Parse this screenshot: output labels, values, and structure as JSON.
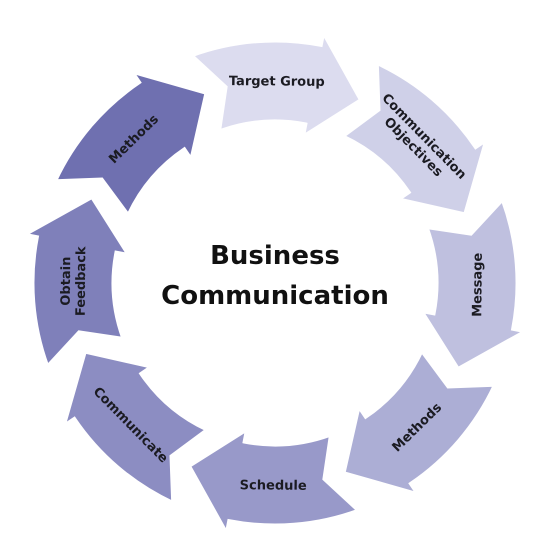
{
  "diagram": {
    "center": {
      "title_lines": [
        "Business",
        "Communication"
      ]
    },
    "segments": [
      {
        "lines": [
          "Target Group"
        ],
        "color": "#dcdcef"
      },
      {
        "lines": [
          "Communication",
          "Objectives"
        ],
        "color": "#cfd0e8"
      },
      {
        "lines": [
          "Message"
        ],
        "color": "#bfc0df"
      },
      {
        "lines": [
          "Methods"
        ],
        "color": "#acaed5"
      },
      {
        "lines": [
          "Schedule"
        ],
        "color": "#9899c9"
      },
      {
        "lines": [
          "Communicate"
        ],
        "color": "#8c8dc2"
      },
      {
        "lines": [
          "Obtain",
          "Feedback"
        ],
        "color": "#7f80ba"
      },
      {
        "lines": [
          "Methods"
        ],
        "color": "#6f70b0"
      }
    ]
  }
}
